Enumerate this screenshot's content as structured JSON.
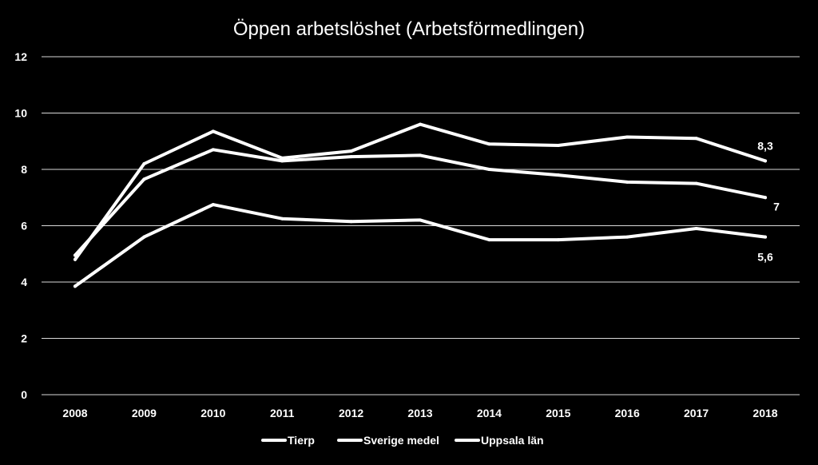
{
  "chart_data": {
    "type": "line",
    "title": "Öppen arbetslöshet (Arbetsförmedlingen)",
    "x": [
      "2008",
      "2009",
      "2010",
      "2011",
      "2012",
      "2013",
      "2014",
      "2015",
      "2016",
      "2017",
      "2018"
    ],
    "y_ticks": [
      "0",
      "2",
      "4",
      "6",
      "8",
      "10",
      "12"
    ],
    "ylim": [
      0,
      12
    ],
    "grid": true,
    "legend_position": "bottom",
    "series": [
      {
        "name": "Tierp",
        "values": [
          4.8,
          8.2,
          9.35,
          8.4,
          8.65,
          9.6,
          8.9,
          8.85,
          9.15,
          9.1,
          8.3
        ],
        "end_label": "8,3",
        "color": "#ffffff"
      },
      {
        "name": "Sverige medel",
        "values": [
          4.95,
          7.65,
          8.7,
          8.3,
          8.45,
          8.5,
          8.0,
          7.8,
          7.55,
          7.5,
          7.0
        ],
        "end_label": "7",
        "color": "#ffffff"
      },
      {
        "name": "Uppsala län",
        "values": [
          3.85,
          5.6,
          6.75,
          6.25,
          6.15,
          6.2,
          5.5,
          5.5,
          5.6,
          5.9,
          5.6
        ],
        "end_label": "5,6",
        "color": "#ffffff"
      }
    ]
  }
}
